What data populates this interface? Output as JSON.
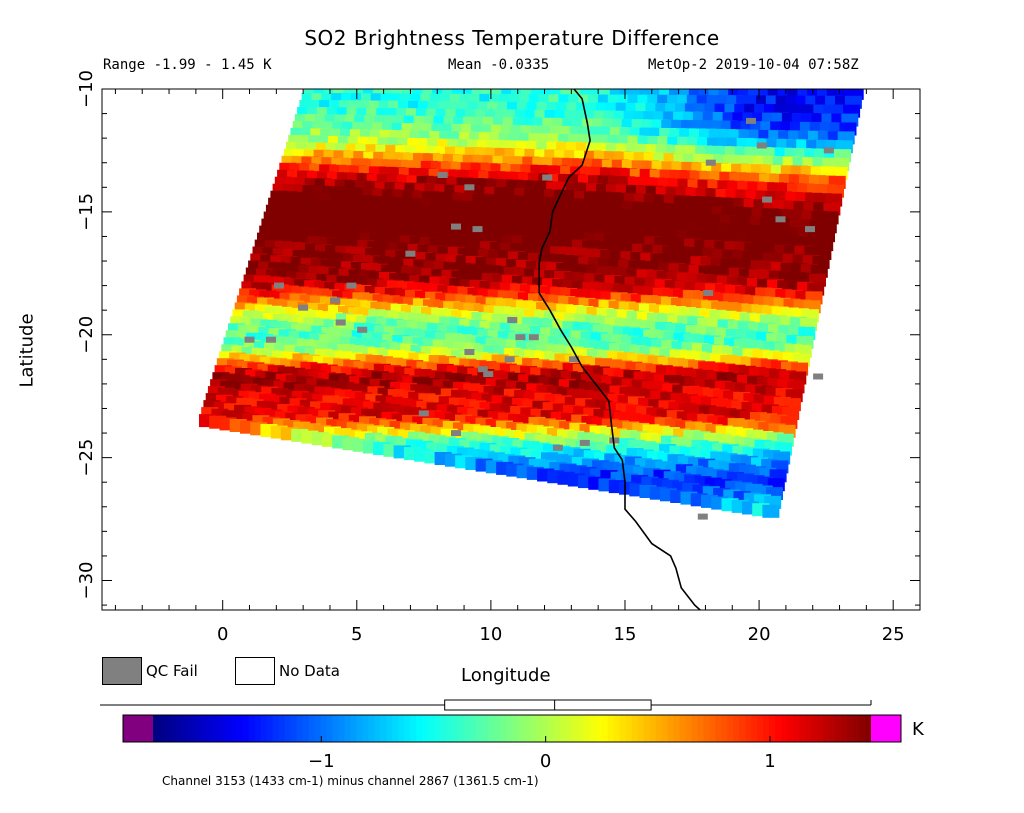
{
  "chart_data": {
    "type": "heatmap",
    "title": "SO2 Brightness Temperature Difference",
    "stats": {
      "range_text": "Range -1.99 - 1.45 K",
      "mean_text": "Mean -0.0335",
      "satellite_text": "MetOp-2 2019-10-04 07:58Z"
    },
    "xlabel": "Longitude",
    "ylabel": "Latitude",
    "xlim": [
      -4.5,
      26.0
    ],
    "ylim": [
      -31.2,
      -10.0
    ],
    "x_ticks": [
      0,
      5,
      10,
      15,
      20,
      25
    ],
    "y_ticks": [
      -10,
      -15,
      -20,
      -25,
      -30
    ],
    "swath_corners": {
      "top_left": [
        3.2,
        -10.0
      ],
      "top_right": [
        23.8,
        -10.0
      ],
      "bottom_right": [
        20.6,
        -27.4
      ],
      "bottom_left": [
        -0.8,
        -23.6
      ]
    },
    "bands": [
      {
        "lat_center": -13.8,
        "width": 1.6,
        "value": 0.95
      },
      {
        "lat_center": -15.3,
        "width": 1.4,
        "value": 0.75
      },
      {
        "lat_center": -16.8,
        "width": 1.6,
        "value": 0.9
      },
      {
        "lat_center": -18.2,
        "width": 1.2,
        "value": 0.65
      },
      {
        "lat_center": -21.8,
        "width": 0.9,
        "value": 1.3
      },
      {
        "lat_center": -23.3,
        "width": 0.9,
        "value": 1.1
      },
      {
        "lat_center": -26.0,
        "width": 1.0,
        "value": -1.1
      }
    ],
    "coastline": [
      [
        13.1,
        -10.0
      ],
      [
        13.4,
        -10.4
      ],
      [
        13.6,
        -11.4
      ],
      [
        13.7,
        -12.1
      ],
      [
        13.4,
        -13.1
      ],
      [
        12.9,
        -13.6
      ],
      [
        12.6,
        -14.3
      ],
      [
        12.3,
        -15.0
      ],
      [
        12.2,
        -15.8
      ],
      [
        11.9,
        -16.5
      ],
      [
        11.8,
        -17.1
      ],
      [
        11.8,
        -18.3
      ],
      [
        12.2,
        -19.0
      ],
      [
        12.6,
        -19.8
      ],
      [
        13.0,
        -20.5
      ],
      [
        13.4,
        -21.3
      ],
      [
        13.9,
        -22.0
      ],
      [
        14.4,
        -22.7
      ],
      [
        14.5,
        -23.7
      ],
      [
        14.6,
        -24.6
      ],
      [
        14.9,
        -25.1
      ],
      [
        15.0,
        -26.0
      ],
      [
        15.0,
        -27.1
      ],
      [
        15.4,
        -27.6
      ],
      [
        16.0,
        -28.5
      ],
      [
        16.7,
        -29.0
      ],
      [
        16.9,
        -29.5
      ],
      [
        17.1,
        -30.3
      ],
      [
        17.6,
        -31.0
      ],
      [
        17.8,
        -31.2
      ]
    ],
    "qc_fail_points": [
      [
        8.2,
        -13.5
      ],
      [
        9.2,
        -14.0
      ],
      [
        12.1,
        -13.6
      ],
      [
        8.7,
        -15.6
      ],
      [
        9.5,
        -15.7
      ],
      [
        7.0,
        -16.7
      ],
      [
        4.8,
        -18.0
      ],
      [
        2.1,
        -18.0
      ],
      [
        4.2,
        -18.6
      ],
      [
        3.0,
        -18.9
      ],
      [
        4.4,
        -19.5
      ],
      [
        5.2,
        -19.8
      ],
      [
        10.8,
        -19.4
      ],
      [
        11.1,
        -20.1
      ],
      [
        11.6,
        -20.1
      ],
      [
        9.2,
        -20.7
      ],
      [
        10.7,
        -21.0
      ],
      [
        13.1,
        -21.0
      ],
      [
        1.0,
        -20.2
      ],
      [
        1.8,
        -20.2
      ],
      [
        9.7,
        -21.4
      ],
      [
        9.9,
        -21.6
      ],
      [
        7.5,
        -23.2
      ],
      [
        8.7,
        -24.0
      ],
      [
        14.6,
        -24.3
      ],
      [
        12.5,
        -24.6
      ],
      [
        13.5,
        -24.4
      ],
      [
        17.9,
        -27.4
      ],
      [
        22.2,
        -21.7
      ],
      [
        18.1,
        -18.3
      ],
      [
        20.8,
        -15.3
      ],
      [
        21.9,
        -15.7
      ],
      [
        20.1,
        -12.3
      ],
      [
        22.6,
        -12.5
      ],
      [
        19.7,
        -11.3
      ],
      [
        18.2,
        -13.0
      ],
      [
        20.3,
        -14.5
      ]
    ],
    "legend": [
      {
        "label": "QC Fail",
        "color": "#808080"
      },
      {
        "label": "No Data",
        "color": "#ffffff"
      }
    ],
    "colorbar": {
      "min": -1.75,
      "max": 1.45,
      "ticks": [
        -1,
        0,
        1
      ],
      "under_color": "#800080",
      "over_color": "#ff00ff",
      "unit": "K",
      "boxplot": {
        "whisker_low": -1.88,
        "q1": -0.45,
        "median": 0.04,
        "q3": 0.47,
        "whisker_high": 1.45
      }
    },
    "channel_text": "Channel 3153 (1433 cm-1) minus channel 2867 (1361.5 cm-1)"
  }
}
